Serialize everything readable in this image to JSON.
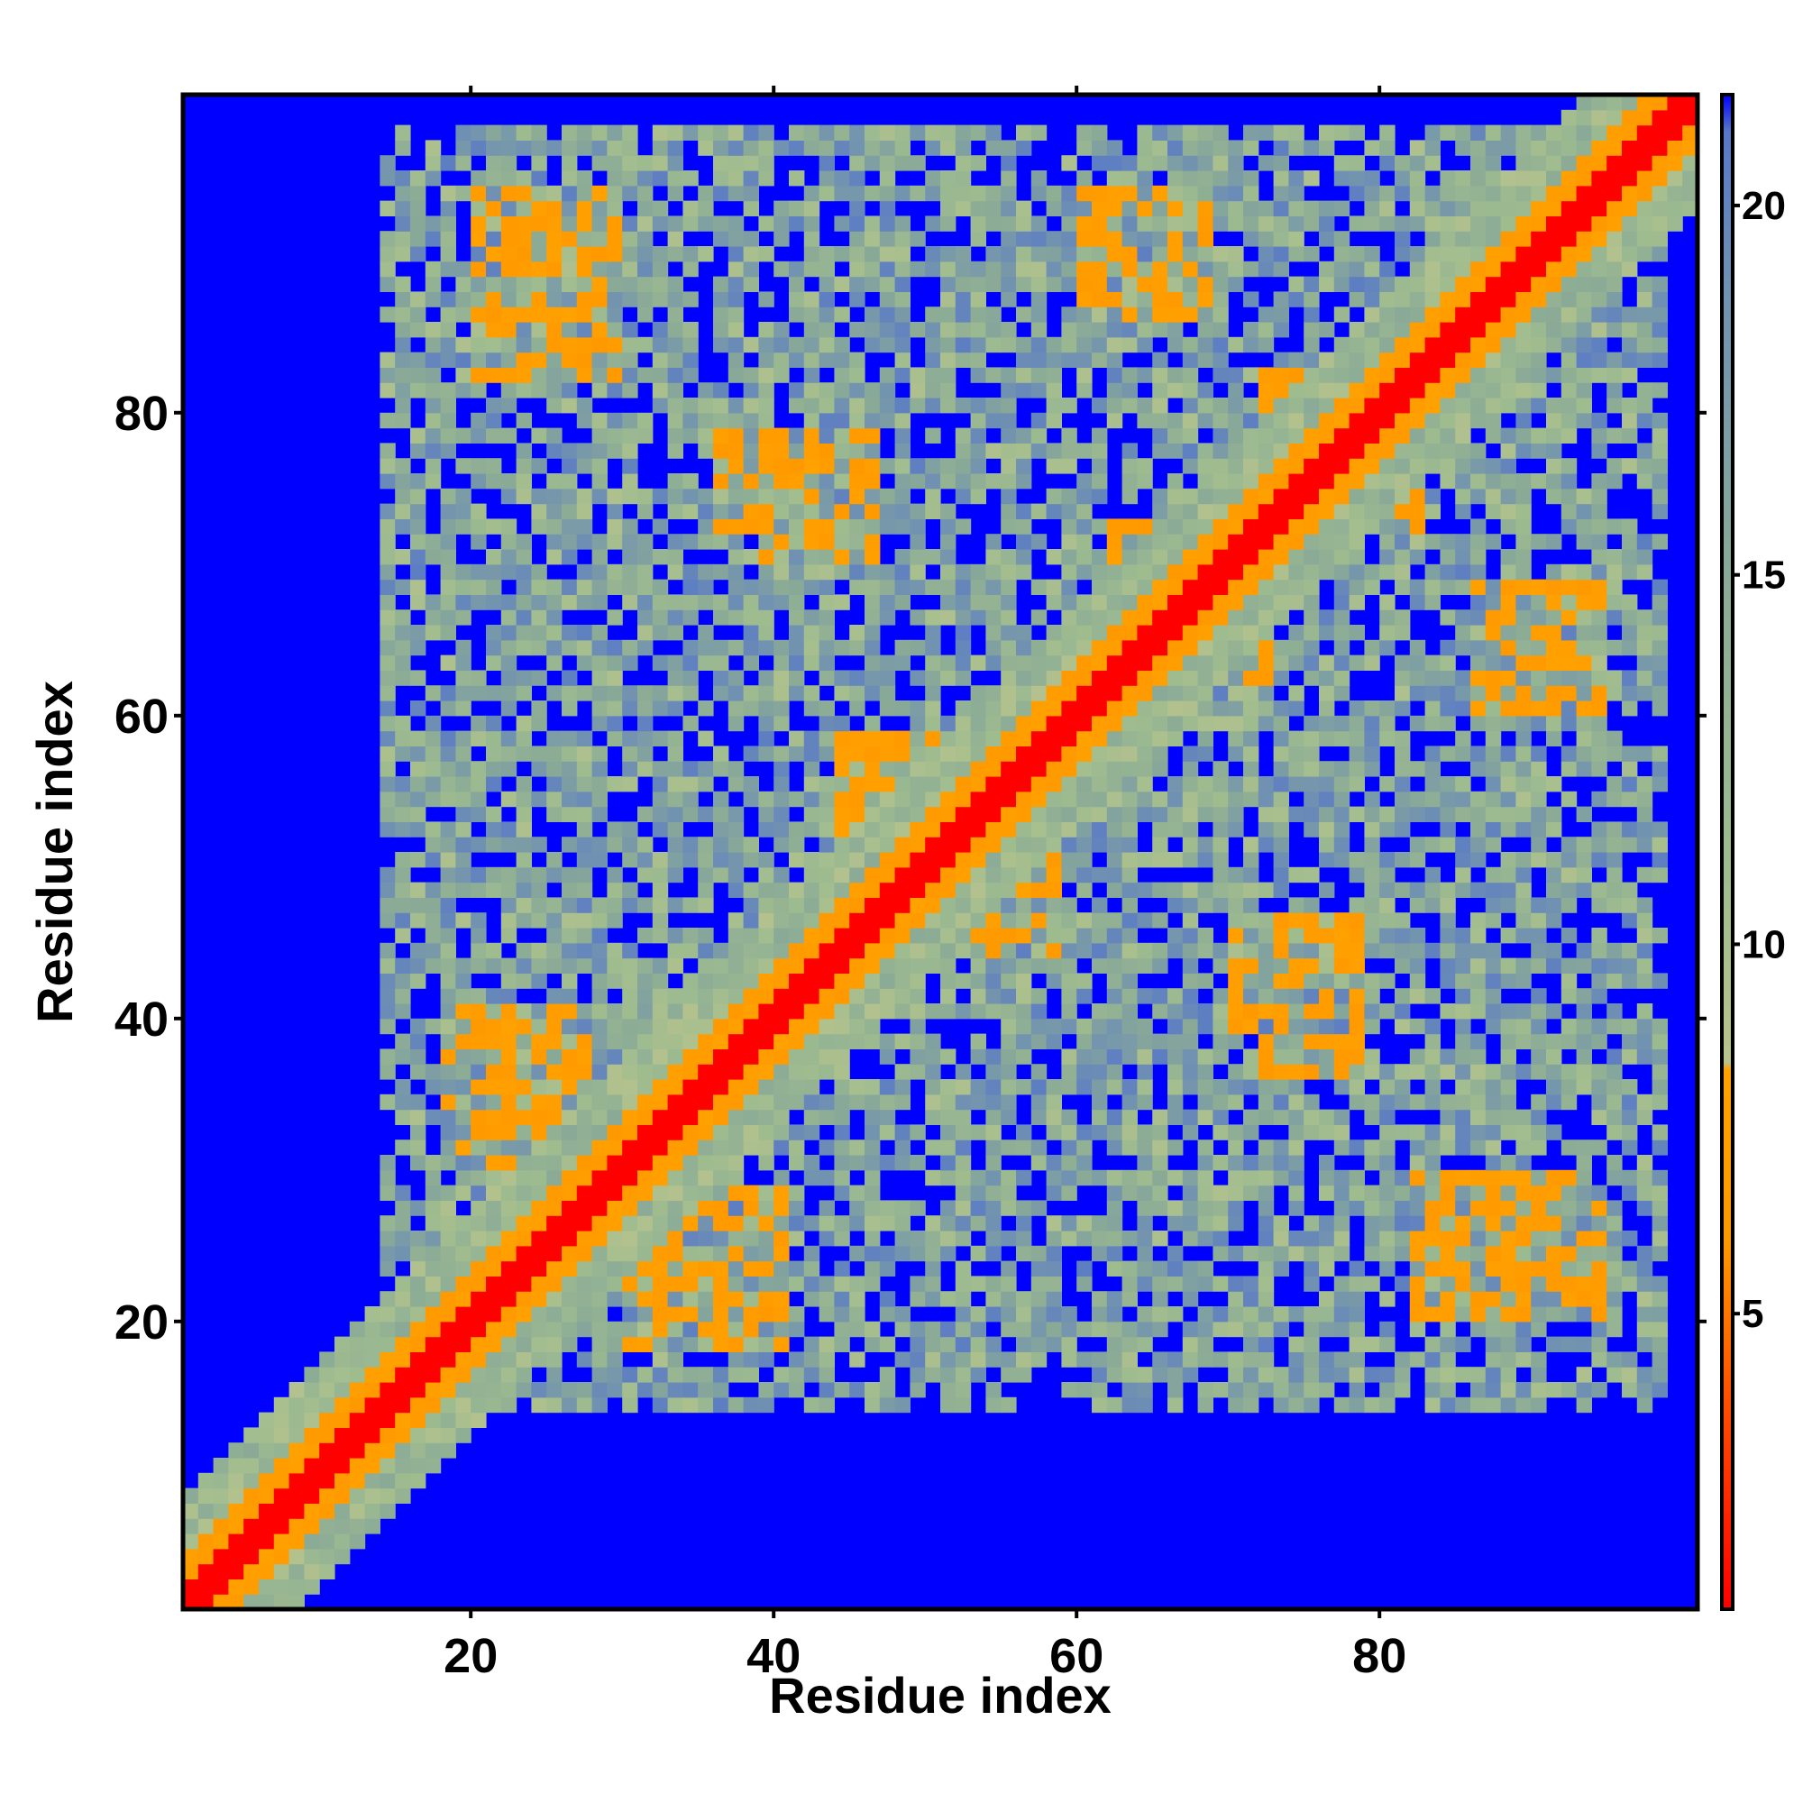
{
  "chart_data": {
    "type": "heatmap",
    "title": "",
    "xlabel": "Residue index",
    "ylabel": "Residue index",
    "x_range": [
      1,
      101
    ],
    "y_range": [
      1,
      101
    ],
    "x_ticks": [
      "20",
      "40",
      "60",
      "80"
    ],
    "y_ticks": [
      "20",
      "40",
      "60",
      "80"
    ],
    "colorbar": {
      "range": [
        1,
        21.5
      ],
      "ticks": [
        "5",
        "10",
        "15",
        "20"
      ],
      "stops": [
        {
          "value": 1,
          "color": "#ff0000"
        },
        {
          "value": 4,
          "color": "#ff5500"
        },
        {
          "value": 6,
          "color": "#ff9900"
        },
        {
          "value": 8.3,
          "color": "#ffa200"
        },
        {
          "value": 8.4,
          "color": "#b9c38d"
        },
        {
          "value": 11,
          "color": "#9fbc8f"
        },
        {
          "value": 15,
          "color": "#8aaa97"
        },
        {
          "value": 19,
          "color": "#6f90b2"
        },
        {
          "value": 21,
          "color": "#5878c8"
        },
        {
          "value": 21.5,
          "color": "#0000ff"
        }
      ]
    },
    "description_values": {
      "diagonal_distance": 1,
      "near_diagonal_distance": 6,
      "contact_region_distance": 12,
      "far_distance": 21.5
    },
    "contact_clusters": [
      {
        "x": [
          20,
          28
        ],
        "y": [
          88,
          94
        ]
      },
      {
        "x": [
          39,
          46
        ],
        "y": [
          70,
          78
        ]
      },
      {
        "x": [
          60,
          67
        ],
        "y": [
          86,
          94
        ]
      },
      {
        "x": [
          72,
          79
        ],
        "y": [
          72,
          82
        ]
      },
      {
        "x": [
          64,
          72
        ],
        "y": [
          62,
          72
        ]
      },
      {
        "x": [
          86,
          94
        ],
        "y": [
          60,
          68
        ]
      },
      {
        "x": [
          72,
          78
        ],
        "y": [
          36,
          44
        ]
      },
      {
        "x": [
          18,
          28
        ],
        "y": [
          30,
          40
        ]
      },
      {
        "x": [
          30,
          40
        ],
        "y": [
          18,
          28
        ]
      },
      {
        "x": [
          82,
          92
        ],
        "y": [
          20,
          29
        ]
      },
      {
        "x": [
          44,
          56
        ],
        "y": [
          46,
          58
        ]
      }
    ],
    "colors": {
      "background": "#0000ff",
      "diagonal": "#ff0000",
      "contact": "#ffa200"
    }
  }
}
